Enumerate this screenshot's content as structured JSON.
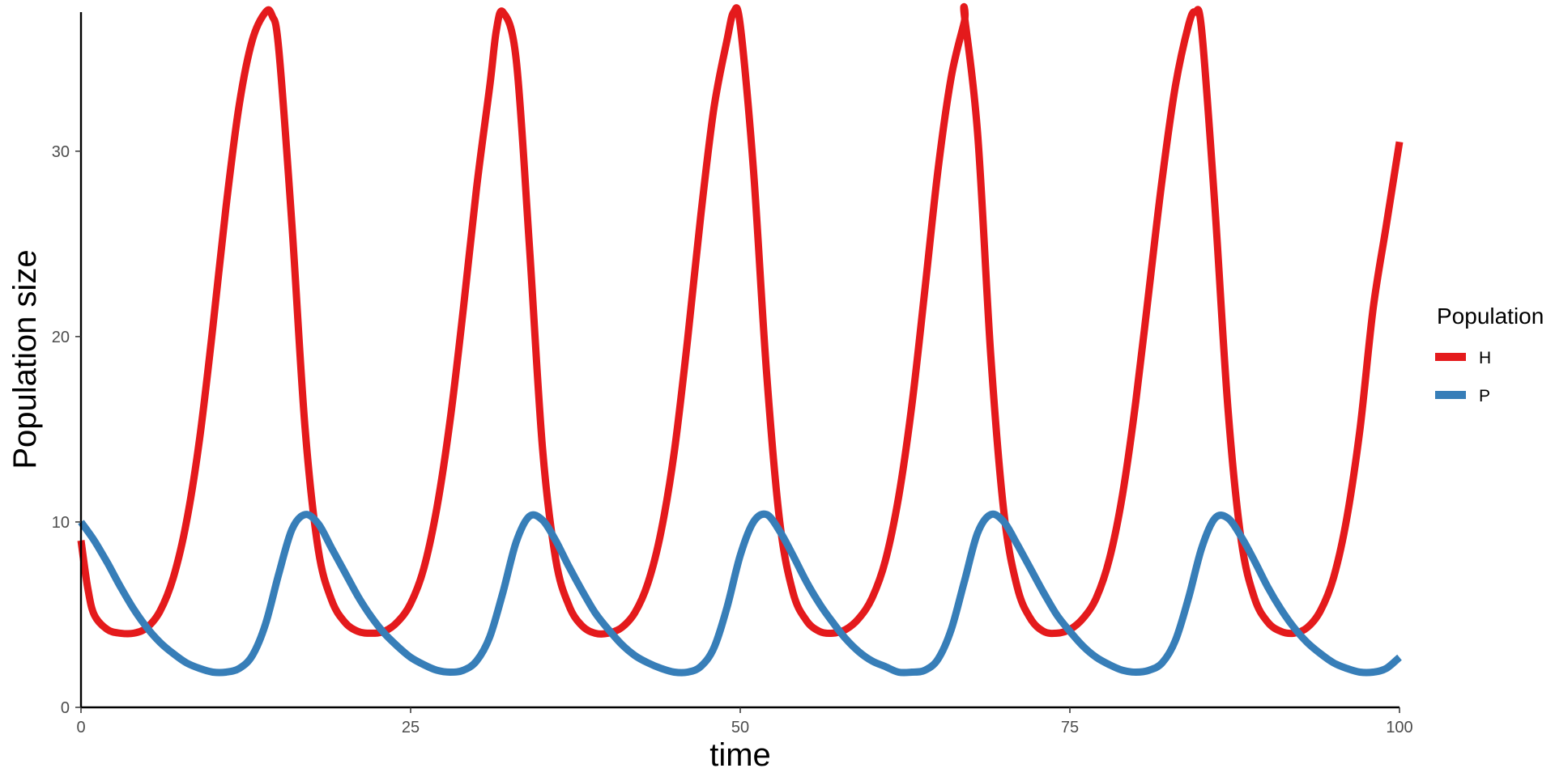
{
  "chart_data": {
    "type": "line",
    "title": "",
    "xlabel": "time",
    "ylabel": "Population size",
    "xlim": [
      0,
      100
    ],
    "ylim": [
      0,
      37.5
    ],
    "x_ticks": [
      0,
      25,
      50,
      75,
      100
    ],
    "x_tick_labels": [
      "0",
      "25",
      "50",
      "75",
      "100"
    ],
    "y_ticks": [
      0,
      10,
      20,
      30
    ],
    "y_tick_labels": [
      "0",
      "10",
      "20",
      "30"
    ],
    "grid": false,
    "legend": {
      "title": "Population",
      "position": "right",
      "entries": [
        "H",
        "P"
      ]
    },
    "series": [
      {
        "name": "H",
        "color": "#E41A1C",
        "x": [
          0,
          0.5,
          1,
          2,
          3,
          4,
          5,
          6,
          7,
          8,
          9,
          10,
          11,
          12,
          13,
          14,
          14.5,
          15,
          16,
          17,
          18,
          19,
          20,
          21,
          22,
          23,
          24,
          25,
          26,
          27,
          28,
          29,
          30,
          31,
          31.5,
          32,
          33,
          34,
          35,
          36,
          37,
          38,
          39,
          40,
          41,
          42,
          43,
          44,
          45,
          46,
          47,
          48,
          49,
          49.5,
          50,
          51,
          52,
          53,
          54,
          55,
          56,
          57,
          58,
          59,
          60,
          61,
          62,
          63,
          64,
          65,
          66,
          67,
          67,
          68,
          69,
          70,
          71,
          72,
          73,
          74,
          75,
          76,
          77,
          78,
          79,
          80,
          81,
          82,
          83,
          84,
          84.5,
          85,
          86,
          87,
          88,
          89,
          90,
          91,
          92,
          93,
          94,
          95,
          96,
          97,
          98,
          99,
          100
        ],
        "y": [
          9.0,
          6.5,
          5.0,
          4.2,
          4.0,
          4.0,
          4.3,
          5.2,
          7.0,
          10.0,
          14.5,
          20.5,
          27.0,
          32.5,
          36.0,
          37.5,
          37.3,
          35.5,
          26.0,
          15.0,
          8.5,
          5.8,
          4.6,
          4.1,
          4.0,
          4.1,
          4.6,
          5.6,
          7.5,
          10.8,
          15.5,
          21.5,
          28.0,
          33.5,
          36.5,
          37.5,
          35.0,
          25.0,
          14.0,
          8.0,
          5.5,
          4.4,
          4.0,
          4.0,
          4.3,
          5.1,
          6.7,
          9.5,
          13.8,
          19.8,
          26.5,
          32.3,
          36.0,
          37.5,
          36.8,
          29.0,
          18.0,
          10.0,
          6.2,
          4.7,
          4.1,
          4.0,
          4.2,
          4.8,
          5.9,
          7.9,
          11.3,
          16.2,
          22.5,
          29.0,
          34.0,
          37.0,
          37.3,
          31.0,
          19.0,
          10.5,
          6.5,
          4.8,
          4.1,
          4.0,
          4.2,
          4.8,
          5.9,
          8.0,
          11.5,
          16.5,
          22.5,
          28.5,
          33.5,
          36.8,
          37.5,
          36.5,
          27.0,
          16.0,
          9.0,
          5.9,
          4.6,
          4.1,
          4.0,
          4.3,
          5.2,
          7.0,
          10.2,
          15.0,
          21.5,
          26.0,
          30.5
        ]
      },
      {
        "name": "P",
        "color": "#377EB8",
        "x": [
          0,
          1,
          2,
          3,
          4,
          5,
          6,
          7,
          8,
          9,
          10,
          11,
          12,
          13,
          14,
          15,
          16,
          17,
          18,
          19,
          20,
          21,
          22,
          23,
          24,
          25,
          26,
          27,
          28,
          29,
          30,
          31,
          32,
          33,
          34,
          35,
          36,
          37,
          38,
          39,
          40,
          41,
          42,
          43,
          44,
          45,
          46,
          47,
          48,
          49,
          50,
          51,
          52,
          53,
          54,
          55,
          56,
          57,
          58,
          59,
          60,
          61,
          62,
          63,
          64,
          65,
          66,
          67,
          68,
          69,
          70,
          71,
          72,
          73,
          74,
          75,
          76,
          77,
          78,
          79,
          80,
          81,
          82,
          83,
          84,
          85,
          86,
          87,
          88,
          89,
          90,
          91,
          92,
          93,
          94,
          95,
          96,
          97,
          98,
          99,
          100
        ],
        "y": [
          10.0,
          9.0,
          7.8,
          6.5,
          5.3,
          4.3,
          3.5,
          2.9,
          2.4,
          2.1,
          1.9,
          1.9,
          2.1,
          2.8,
          4.5,
          7.2,
          9.6,
          10.4,
          9.9,
          8.6,
          7.3,
          6.0,
          4.9,
          4.0,
          3.3,
          2.7,
          2.3,
          2.0,
          1.9,
          2.0,
          2.5,
          3.8,
          6.2,
          8.9,
          10.3,
          10.1,
          9.0,
          7.6,
          6.3,
          5.1,
          4.2,
          3.4,
          2.8,
          2.4,
          2.1,
          1.9,
          1.9,
          2.2,
          3.2,
          5.4,
          8.2,
          10.0,
          10.4,
          9.5,
          8.2,
          6.8,
          5.6,
          4.6,
          3.7,
          3.0,
          2.5,
          2.2,
          1.9,
          1.9,
          2.0,
          2.6,
          4.2,
          6.8,
          9.4,
          10.4,
          10.0,
          8.8,
          7.5,
          6.2,
          5.0,
          4.1,
          3.3,
          2.7,
          2.3,
          2.0,
          1.9,
          2.0,
          2.4,
          3.6,
          5.9,
          8.6,
          10.2,
          10.2,
          9.2,
          7.9,
          6.5,
          5.3,
          4.3,
          3.5,
          2.9,
          2.4,
          2.1,
          1.9,
          1.9,
          2.1,
          2.7
        ]
      }
    ]
  }
}
